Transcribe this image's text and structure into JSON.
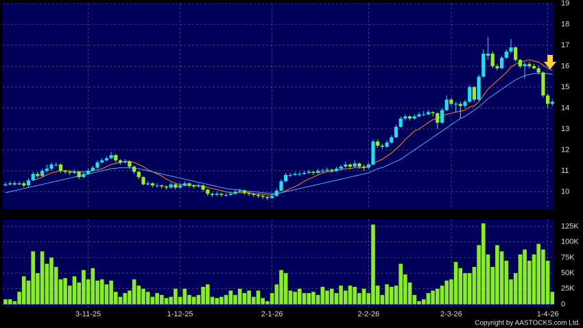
{
  "chart_data": {
    "type": "candlestick",
    "grid": true,
    "categories": [
      null,
      null,
      null,
      null,
      null,
      null,
      null,
      null,
      null,
      null,
      null,
      null,
      null,
      null,
      null,
      null,
      null,
      null,
      "3-11-25",
      null,
      null,
      null,
      null,
      null,
      null,
      null,
      null,
      null,
      null,
      null,
      null,
      null,
      null,
      null,
      null,
      null,
      null,
      null,
      "1-12-25",
      null,
      null,
      null,
      null,
      null,
      null,
      null,
      null,
      null,
      null,
      null,
      null,
      null,
      null,
      null,
      null,
      null,
      null,
      null,
      "2-1-26",
      null,
      null,
      null,
      null,
      null,
      null,
      null,
      null,
      null,
      null,
      null,
      null,
      null,
      null,
      null,
      null,
      null,
      null,
      null,
      null,
      "2-2-26",
      null,
      null,
      null,
      null,
      null,
      null,
      null,
      null,
      null,
      null,
      null,
      null,
      null,
      null,
      null,
      null,
      null,
      "2-3-26",
      null,
      null,
      null,
      null,
      null,
      null,
      null,
      null,
      null,
      null,
      null,
      null,
      null,
      null,
      null,
      null,
      null,
      null,
      null,
      null,
      "1-4-26",
      null
    ],
    "ohlc": [
      [
        10.3,
        10.45,
        10.25,
        10.35
      ],
      [
        10.35,
        10.5,
        10.3,
        10.4
      ],
      [
        10.4,
        10.5,
        10.3,
        10.35
      ],
      [
        10.35,
        10.5,
        10.3,
        10.4
      ],
      [
        10.4,
        10.5,
        10.2,
        10.3
      ],
      [
        10.3,
        10.65,
        10.2,
        10.55
      ],
      [
        10.55,
        10.95,
        10.5,
        10.85
      ],
      [
        10.85,
        10.95,
        10.65,
        10.75
      ],
      [
        10.75,
        11.1,
        10.7,
        11.0
      ],
      [
        11.0,
        11.3,
        10.9,
        11.1
      ],
      [
        11.1,
        11.4,
        11.0,
        11.3
      ],
      [
        11.3,
        11.4,
        11.2,
        11.3
      ],
      [
        11.3,
        11.35,
        10.9,
        11.0
      ],
      [
        11.0,
        11.05,
        10.85,
        10.95
      ],
      [
        10.95,
        11.0,
        10.8,
        10.9
      ],
      [
        10.9,
        11.05,
        10.85,
        10.95
      ],
      [
        10.95,
        11.0,
        10.6,
        10.7
      ],
      [
        10.7,
        10.95,
        10.65,
        10.85
      ],
      [
        10.85,
        11.1,
        10.8,
        11.0
      ],
      [
        11.0,
        11.25,
        10.95,
        11.15
      ],
      [
        11.15,
        11.5,
        11.1,
        11.4
      ],
      [
        11.4,
        11.6,
        11.35,
        11.5
      ],
      [
        11.5,
        11.7,
        11.45,
        11.6
      ],
      [
        11.6,
        11.9,
        11.55,
        11.75
      ],
      [
        11.75,
        11.8,
        11.4,
        11.5
      ],
      [
        11.5,
        11.55,
        11.3,
        11.4
      ],
      [
        11.4,
        11.55,
        11.35,
        11.45
      ],
      [
        11.45,
        11.5,
        11.1,
        11.2
      ],
      [
        11.2,
        11.25,
        10.85,
        10.95
      ],
      [
        10.95,
        11.0,
        10.6,
        10.7
      ],
      [
        10.7,
        10.75,
        10.3,
        10.35
      ],
      [
        10.35,
        10.5,
        10.3,
        10.4
      ],
      [
        10.4,
        10.45,
        10.2,
        10.3
      ],
      [
        10.3,
        10.4,
        10.2,
        10.3
      ],
      [
        10.3,
        10.35,
        10.15,
        10.25
      ],
      [
        10.25,
        10.3,
        10.1,
        10.2
      ],
      [
        10.2,
        10.45,
        10.15,
        10.35
      ],
      [
        10.35,
        10.4,
        10.1,
        10.2
      ],
      [
        10.2,
        10.4,
        10.15,
        10.3
      ],
      [
        10.3,
        10.5,
        10.25,
        10.4
      ],
      [
        10.4,
        10.45,
        10.2,
        10.3
      ],
      [
        10.3,
        10.35,
        10.15,
        10.25
      ],
      [
        10.25,
        10.4,
        10.2,
        10.3
      ],
      [
        10.3,
        10.35,
        10.0,
        10.1
      ],
      [
        10.1,
        10.15,
        9.8,
        9.9
      ],
      [
        9.9,
        9.95,
        9.75,
        9.85
      ],
      [
        9.85,
        10.0,
        9.8,
        9.9
      ],
      [
        9.9,
        9.95,
        9.75,
        9.85
      ],
      [
        9.85,
        9.95,
        9.75,
        9.85
      ],
      [
        9.85,
        10.0,
        9.8,
        9.9
      ],
      [
        9.9,
        10.1,
        9.85,
        10.0
      ],
      [
        10.0,
        10.15,
        9.95,
        10.05
      ],
      [
        10.05,
        10.1,
        9.85,
        9.95
      ],
      [
        9.95,
        10.0,
        9.8,
        9.9
      ],
      [
        9.9,
        9.95,
        9.75,
        9.85
      ],
      [
        9.85,
        9.9,
        9.7,
        9.8
      ],
      [
        9.8,
        9.85,
        9.65,
        9.75
      ],
      [
        9.75,
        9.8,
        9.6,
        9.7
      ],
      [
        9.7,
        9.9,
        9.65,
        9.8
      ],
      [
        9.8,
        10.15,
        9.75,
        10.05
      ],
      [
        10.05,
        10.6,
        10.0,
        10.5
      ],
      [
        10.5,
        10.9,
        10.45,
        10.8
      ],
      [
        10.8,
        10.9,
        10.7,
        10.8
      ],
      [
        10.8,
        10.95,
        10.75,
        10.85
      ],
      [
        10.85,
        10.95,
        10.75,
        10.85
      ],
      [
        10.85,
        11.0,
        10.8,
        10.9
      ],
      [
        10.9,
        11.05,
        10.85,
        10.95
      ],
      [
        10.95,
        11.0,
        10.8,
        10.9
      ],
      [
        10.9,
        11.1,
        10.85,
        11.0
      ],
      [
        11.0,
        11.1,
        10.9,
        11.0
      ],
      [
        11.0,
        11.15,
        10.95,
        11.05
      ],
      [
        11.05,
        11.1,
        10.9,
        11.0
      ],
      [
        11.0,
        11.2,
        10.95,
        11.1
      ],
      [
        11.1,
        11.3,
        11.05,
        11.2
      ],
      [
        11.2,
        11.45,
        11.15,
        11.3
      ],
      [
        11.3,
        11.35,
        11.1,
        11.2
      ],
      [
        11.2,
        11.5,
        11.15,
        11.35
      ],
      [
        11.35,
        11.4,
        11.1,
        11.2
      ],
      [
        11.2,
        11.3,
        11.0,
        11.15
      ],
      [
        11.15,
        11.4,
        11.05,
        11.3
      ],
      [
        11.3,
        12.5,
        11.25,
        12.4
      ],
      [
        12.4,
        12.5,
        12.1,
        12.2
      ],
      [
        12.2,
        12.3,
        12.05,
        12.15
      ],
      [
        12.15,
        12.45,
        12.1,
        12.35
      ],
      [
        12.35,
        12.7,
        12.3,
        12.6
      ],
      [
        12.6,
        13.2,
        12.55,
        13.1
      ],
      [
        13.1,
        13.6,
        13.05,
        13.5
      ],
      [
        13.5,
        13.7,
        13.4,
        13.6
      ],
      [
        13.6,
        13.65,
        13.4,
        13.5
      ],
      [
        13.5,
        13.7,
        13.45,
        13.6
      ],
      [
        13.6,
        13.8,
        13.55,
        13.7
      ],
      [
        13.7,
        13.85,
        13.6,
        13.7
      ],
      [
        13.7,
        13.9,
        13.65,
        13.8
      ],
      [
        13.8,
        13.85,
        13.6,
        13.75
      ],
      [
        13.75,
        13.8,
        13.0,
        13.3
      ],
      [
        13.3,
        14.0,
        13.25,
        13.9
      ],
      [
        13.9,
        14.6,
        13.85,
        14.4
      ],
      [
        14.4,
        14.5,
        14.1,
        14.2
      ],
      [
        14.2,
        14.3,
        13.8,
        14.2
      ],
      [
        14.2,
        14.3,
        13.5,
        14.1
      ],
      [
        14.1,
        14.4,
        14.0,
        14.3
      ],
      [
        14.3,
        15.1,
        14.25,
        15.0
      ],
      [
        15.0,
        15.05,
        14.3,
        14.4
      ],
      [
        14.4,
        15.6,
        14.35,
        15.5
      ],
      [
        15.5,
        16.8,
        15.45,
        16.6
      ],
      [
        16.5,
        17.4,
        16.3,
        16.6
      ],
      [
        16.6,
        16.7,
        15.9,
        16.0
      ],
      [
        16.0,
        16.1,
        15.8,
        15.9
      ],
      [
        15.9,
        16.5,
        15.85,
        16.4
      ],
      [
        16.4,
        16.8,
        16.35,
        16.7
      ],
      [
        16.7,
        17.3,
        16.6,
        16.9
      ],
      [
        16.9,
        16.95,
        16.2,
        16.3
      ],
      [
        16.3,
        16.35,
        15.9,
        16.0
      ],
      [
        16.0,
        16.2,
        15.4,
        16.1
      ],
      [
        16.1,
        16.2,
        15.9,
        16.0
      ],
      [
        16.0,
        16.1,
        15.85,
        15.9
      ],
      [
        15.9,
        16.0,
        15.6,
        15.7
      ],
      [
        15.7,
        15.75,
        14.5,
        14.6
      ],
      [
        14.6,
        14.7,
        14.0,
        14.2
      ],
      [
        14.2,
        14.4,
        14.1,
        14.3
      ]
    ],
    "up_color": "#22ddee",
    "down_color": "#99ee22",
    "ylim": [
      9.16,
      19
    ],
    "yticks": [
      10,
      11,
      12,
      13,
      14,
      15,
      16,
      17,
      18,
      19
    ],
    "lines": [
      {
        "color": "#ff8c1a",
        "values": [
          null,
          null,
          null,
          null,
          null,
          null,
          10.55,
          10.6,
          10.7,
          10.8,
          10.9,
          10.95,
          11.0,
          11.0,
          11.0,
          10.95,
          10.95,
          10.95,
          10.95,
          11.0,
          11.05,
          11.1,
          11.2,
          11.3,
          11.35,
          11.4,
          11.45,
          11.45,
          11.4,
          11.3,
          11.2,
          11.05,
          10.95,
          10.85,
          10.75,
          10.6,
          10.5,
          10.4,
          10.35,
          10.3,
          10.3,
          10.3,
          10.3,
          10.25,
          10.2,
          10.15,
          10.1,
          10.05,
          10.0,
          9.95,
          9.95,
          9.95,
          9.95,
          9.95,
          9.9,
          9.9,
          9.88,
          9.85,
          9.85,
          9.9,
          9.95,
          10.05,
          10.15,
          10.25,
          10.35,
          10.5,
          10.6,
          10.7,
          10.8,
          10.9,
          10.95,
          10.97,
          11.0,
          11.05,
          11.1,
          11.1,
          11.15,
          11.15,
          11.15,
          11.2,
          11.35,
          11.45,
          11.55,
          11.7,
          11.85,
          12.05,
          12.25,
          12.5,
          12.7,
          12.9,
          13.0,
          13.15,
          13.3,
          13.45,
          13.5,
          13.6,
          13.7,
          13.75,
          13.8,
          13.85,
          13.9,
          14.05,
          14.1,
          14.3,
          14.6,
          14.9,
          15.1,
          15.3,
          15.5,
          15.7,
          15.95,
          16.1,
          16.2,
          16.25,
          16.3,
          16.25,
          16.2,
          16.05,
          15.9,
          15.8
        ]
      },
      {
        "color": "#5aa8ff",
        "values": [
          9.95,
          10.0,
          10.05,
          10.1,
          10.15,
          10.2,
          10.25,
          10.3,
          10.35,
          10.4,
          10.45,
          10.5,
          10.55,
          10.6,
          10.65,
          10.7,
          10.75,
          10.8,
          10.85,
          10.9,
          10.95,
          11.0,
          11.05,
          11.1,
          11.12,
          11.15,
          11.15,
          11.15,
          11.12,
          11.1,
          11.05,
          11.0,
          10.95,
          10.9,
          10.85,
          10.8,
          10.75,
          10.7,
          10.65,
          10.6,
          10.55,
          10.5,
          10.45,
          10.4,
          10.35,
          10.3,
          10.25,
          10.2,
          10.15,
          10.12,
          10.1,
          10.08,
          10.05,
          10.02,
          10.0,
          9.98,
          9.95,
          9.93,
          9.92,
          9.92,
          9.95,
          10.0,
          10.05,
          10.1,
          10.15,
          10.2,
          10.25,
          10.3,
          10.35,
          10.4,
          10.45,
          10.5,
          10.55,
          10.6,
          10.65,
          10.7,
          10.75,
          10.8,
          10.85,
          10.9,
          11.0,
          11.1,
          11.15,
          11.25,
          11.35,
          11.45,
          11.55,
          11.7,
          11.85,
          12.0,
          12.15,
          12.3,
          12.45,
          12.6,
          12.75,
          12.9,
          13.05,
          13.2,
          13.35,
          13.5,
          13.6,
          13.75,
          13.9,
          14.05,
          14.25,
          14.45,
          14.6,
          14.75,
          14.9,
          15.05,
          15.2,
          15.35,
          15.45,
          15.55,
          15.6,
          15.65,
          15.65,
          15.65,
          15.65,
          15.6
        ]
      }
    ],
    "volume": {
      "color": "#88ee22",
      "values": [
        8000,
        8000,
        5000,
        20000,
        45000,
        38000,
        85000,
        50000,
        85000,
        65000,
        75000,
        60000,
        40000,
        42000,
        30000,
        45000,
        35000,
        55000,
        40000,
        58000,
        38000,
        40000,
        32000,
        38000,
        20000,
        12000,
        18000,
        22000,
        40000,
        30000,
        25000,
        20000,
        12000,
        18000,
        15000,
        10000,
        12000,
        25000,
        12000,
        25000,
        15000,
        12000,
        15000,
        28000,
        32000,
        12000,
        10000,
        12000,
        15000,
        22000,
        15000,
        25000,
        18000,
        22000,
        12000,
        22000,
        10000,
        5000,
        18000,
        32000,
        55000,
        50000,
        22000,
        20000,
        25000,
        18000,
        18000,
        20000,
        15000,
        28000,
        22000,
        25000,
        18000,
        30000,
        22000,
        30000,
        28000,
        18000,
        25000,
        18000,
        128000,
        30000,
        15000,
        32000,
        28000,
        30000,
        65000,
        48000,
        35000,
        15000,
        5000,
        8000,
        18000,
        22000,
        25000,
        30000,
        38000,
        40000,
        68000,
        58000,
        50000,
        50000,
        60000,
        95000,
        130000,
        80000,
        60000,
        95000,
        85000,
        70000,
        40000,
        50000,
        80000,
        88000,
        70000,
        80000,
        97000,
        88000,
        70000,
        20000
      ],
      "ylim": [
        -5000,
        136000
      ],
      "yticks": [
        0,
        {
          "value": 25000,
          "label": "25K"
        },
        {
          "value": 50000,
          "label": "50K"
        },
        {
          "value": 75000,
          "label": "75K"
        },
        {
          "value": 100000,
          "label": "100K"
        },
        {
          "value": 125000,
          "label": "125K"
        }
      ]
    },
    "copyright": "Copyright by AASTOCKS.com Ltd."
  }
}
